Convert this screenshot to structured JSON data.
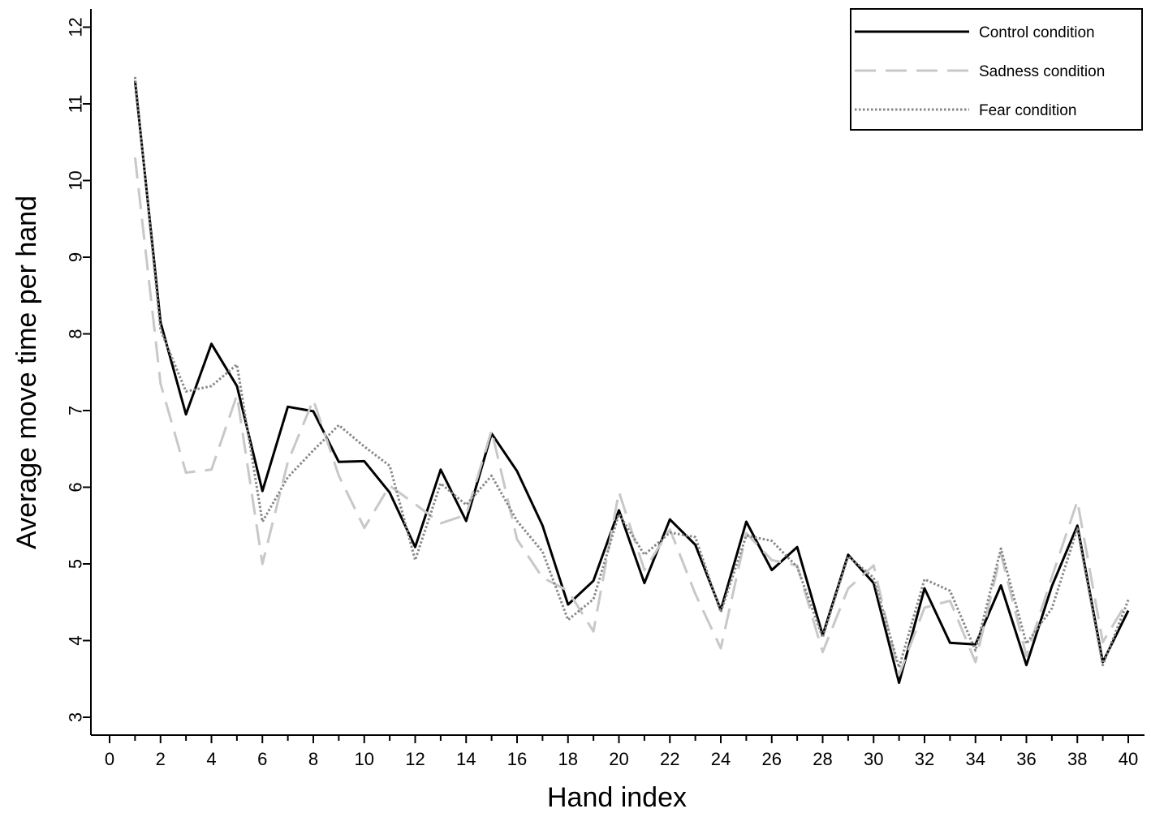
{
  "chart_data": {
    "type": "line",
    "title": "",
    "xlabel": "Hand index",
    "ylabel": "Average move time per hand",
    "xlim": [
      0,
      40
    ],
    "ylim": [
      3,
      12
    ],
    "xticks": [
      "0",
      "2",
      "4",
      "6",
      "8",
      "10",
      "12",
      "14",
      "16",
      "18",
      "20",
      "22",
      "24",
      "26",
      "28",
      "30",
      "32",
      "34",
      "36",
      "38",
      "40"
    ],
    "yticks": [
      "3",
      "4",
      "5",
      "6",
      "7",
      "8",
      "9",
      "10",
      "11",
      "12"
    ],
    "grid": false,
    "legend_position": "top-right",
    "x": [
      1,
      2,
      3,
      4,
      5,
      6,
      7,
      8,
      9,
      10,
      11,
      12,
      13,
      14,
      15,
      16,
      17,
      18,
      19,
      20,
      21,
      22,
      23,
      24,
      25,
      26,
      27,
      28,
      29,
      30,
      31,
      32,
      33,
      34,
      35,
      36,
      37,
      38,
      39,
      40
    ],
    "series": [
      {
        "name": "Control condition",
        "color": "#000000",
        "style": "solid",
        "values": [
          11.3,
          8.15,
          6.95,
          7.87,
          7.32,
          5.95,
          7.05,
          6.99,
          6.33,
          6.34,
          5.93,
          5.22,
          6.23,
          5.56,
          6.7,
          6.21,
          5.5,
          4.47,
          4.78,
          5.7,
          4.75,
          5.58,
          5.25,
          4.4,
          5.55,
          4.92,
          5.22,
          4.07,
          5.12,
          4.75,
          3.45,
          4.68,
          3.97,
          3.95,
          4.72,
          3.68,
          4.71,
          5.5,
          3.72,
          4.39
        ]
      },
      {
        "name": "Sadness condition",
        "color": "#c8c8c8",
        "style": "dashed",
        "values": [
          10.3,
          7.35,
          6.19,
          6.23,
          7.2,
          5.0,
          6.33,
          7.14,
          6.15,
          5.47,
          6.02,
          5.78,
          5.53,
          5.64,
          6.74,
          5.32,
          4.82,
          4.65,
          4.12,
          5.94,
          4.92,
          5.45,
          4.61,
          3.9,
          5.4,
          5.05,
          4.98,
          3.85,
          4.68,
          4.98,
          3.55,
          4.43,
          4.52,
          3.72,
          5.13,
          3.8,
          4.83,
          5.82,
          3.98,
          4.53
        ]
      },
      {
        "name": "Fear condition",
        "color": "#888888",
        "style": "dotted",
        "values": [
          11.35,
          8.05,
          7.25,
          7.32,
          7.6,
          5.55,
          6.13,
          6.48,
          6.81,
          6.53,
          6.28,
          5.05,
          6.05,
          5.77,
          6.15,
          5.56,
          5.16,
          4.27,
          4.54,
          5.65,
          5.12,
          5.41,
          5.35,
          4.37,
          5.37,
          5.3,
          4.96,
          4.04,
          5.1,
          4.82,
          3.65,
          4.8,
          4.65,
          3.87,
          5.2,
          3.96,
          4.42,
          5.46,
          3.68,
          4.53
        ]
      }
    ]
  }
}
